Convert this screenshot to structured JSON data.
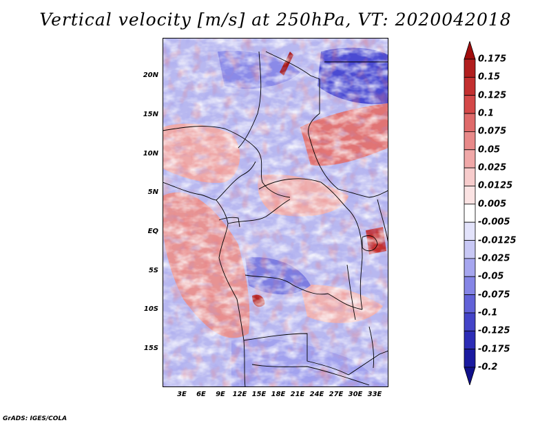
{
  "title": "Vertical velocity [m/s] at 250hPa, VT: 2020042018",
  "credit": "GrADS: IGES/COLA",
  "lat_labels": [
    "20N",
    "15N",
    "10N",
    "5N",
    "EQ",
    "5S",
    "10S",
    "15S"
  ],
  "lon_labels": [
    "3E",
    "6E",
    "9E",
    "12E",
    "15E",
    "18E",
    "21E",
    "24E",
    "27E",
    "30E",
    "33E"
  ],
  "colorbar": {
    "labels": [
      "0.175",
      "0.15",
      "0.125",
      "0.1",
      "0.075",
      "0.05",
      "0.025",
      "0.0125",
      "0.005",
      "-0.005",
      "-0.0125",
      "-0.025",
      "-0.05",
      "-0.075",
      "-0.1",
      "-0.125",
      "-0.175",
      "-0.2"
    ],
    "colors": [
      "#a00d0d",
      "#b11e1e",
      "#c32f2f",
      "#d44848",
      "#df6a6a",
      "#e88989",
      "#f0a8a8",
      "#f7cccc",
      "#fbe3e3",
      "#ffffff",
      "#e3e3fb",
      "#c8c8f5",
      "#a6a6ef",
      "#8585e6",
      "#6262d8",
      "#4444c8",
      "#2c2cb6",
      "#1a1aa0",
      "#10108a"
    ]
  }
}
